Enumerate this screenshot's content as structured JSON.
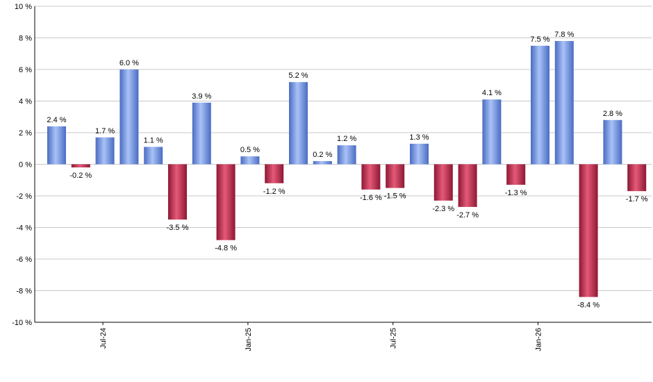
{
  "chart_data": {
    "type": "bar",
    "title": "",
    "xlabel": "",
    "ylabel": "",
    "ylim": [
      -10,
      10
    ],
    "yticks": [
      -10,
      -8,
      -6,
      -4,
      -2,
      0,
      2,
      4,
      6,
      8,
      10
    ],
    "ytick_labels": [
      "-10 %",
      "-8 %",
      "-6 %",
      "-4 %",
      "-2 %",
      "0 %",
      "2 %",
      "4 %",
      "6 %",
      "8 %",
      "10 %"
    ],
    "grid": "horizontal",
    "xtick_labels": [
      {
        "label": "Jul-24",
        "at_bar": 2
      },
      {
        "label": "Jan-25",
        "at_bar": 8
      },
      {
        "label": "Jul-25",
        "at_bar": 14
      },
      {
        "label": "Jan-26",
        "at_bar": 20
      }
    ],
    "values": [
      2.4,
      -0.2,
      1.7,
      6.0,
      1.1,
      -3.5,
      3.9,
      -4.8,
      0.5,
      -1.2,
      5.2,
      0.2,
      1.2,
      -1.6,
      -1.5,
      1.3,
      -2.3,
      -2.7,
      4.1,
      -1.3,
      7.5,
      7.8,
      -8.4,
      2.8,
      -1.7
    ],
    "data_labels": [
      "2.4 %",
      "-0.2 %",
      "1.7 %",
      "6.0 %",
      "1.1 %",
      "-3.5 %",
      "3.9 %",
      "-4.8 %",
      "0.5 %",
      "-1.2 %",
      "5.2 %",
      "0.2 %",
      "1.2 %",
      "-1.6 %",
      "-1.5 %",
      "1.3 %",
      "-2.3 %",
      "-2.7 %",
      "4.1 %",
      "-1.3 %",
      "7.5 %",
      "7.8 %",
      "-8.4 %",
      "2.8 %",
      "-1.7 %"
    ],
    "colors": {
      "positive_light": "#a9c2f7",
      "positive_dark": "#4a6cc2",
      "negative_light": "#e45a78",
      "negative_dark": "#8e1733",
      "grid": "#c8c8c8",
      "axis": "#000000"
    }
  }
}
